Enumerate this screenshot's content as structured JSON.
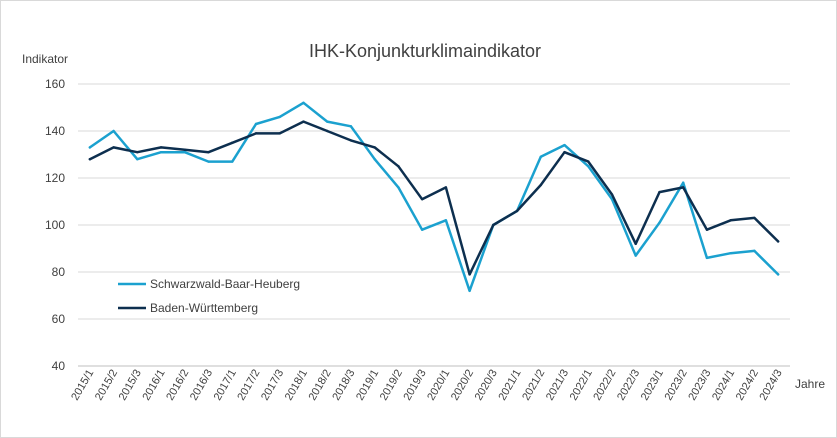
{
  "chart_data": {
    "type": "line",
    "title": "IHK-Konjunkturklimaindikator",
    "xlabel": "Jahre",
    "ylabel": "Indikator",
    "ylim": [
      40,
      160
    ],
    "yticks": [
      40,
      60,
      80,
      100,
      120,
      140,
      160
    ],
    "grid": true,
    "legend_position": "bottom-left",
    "categories": [
      "2015/1",
      "2015/2",
      "2015/3",
      "2016/1",
      "2016/2",
      "2016/3",
      "2017/1",
      "2017/2",
      "2017/3",
      "2018/1",
      "2018/2",
      "2018/3",
      "2019/1",
      "2019/2",
      "2019/3",
      "2020/1",
      "2020/2",
      "2020/3",
      "2021/1",
      "2021/2",
      "2021/3",
      "2022/1",
      "2022/2",
      "2022/3",
      "2023/1",
      "2023/2",
      "2023/3",
      "2024/1",
      "2024/2",
      "2024/3"
    ],
    "series": [
      {
        "name": "Schwarzwald-Baar-Heuberg",
        "color": "#1ba1cf",
        "values": [
          133,
          140,
          128,
          131,
          131,
          127,
          127,
          143,
          146,
          152,
          144,
          142,
          128,
          116,
          98,
          102,
          72,
          100,
          106,
          129,
          134,
          125,
          111,
          87,
          101,
          118,
          86,
          88,
          89,
          79
        ]
      },
      {
        "name": "Baden-Württemberg",
        "color": "#0d2f4f",
        "values": [
          128,
          133,
          131,
          133,
          132,
          131,
          135,
          139,
          139,
          144,
          140,
          136,
          133,
          125,
          111,
          116,
          79,
          100,
          106,
          117,
          131,
          127,
          113,
          92,
          114,
          116,
          98,
          102,
          103,
          93
        ]
      }
    ]
  }
}
